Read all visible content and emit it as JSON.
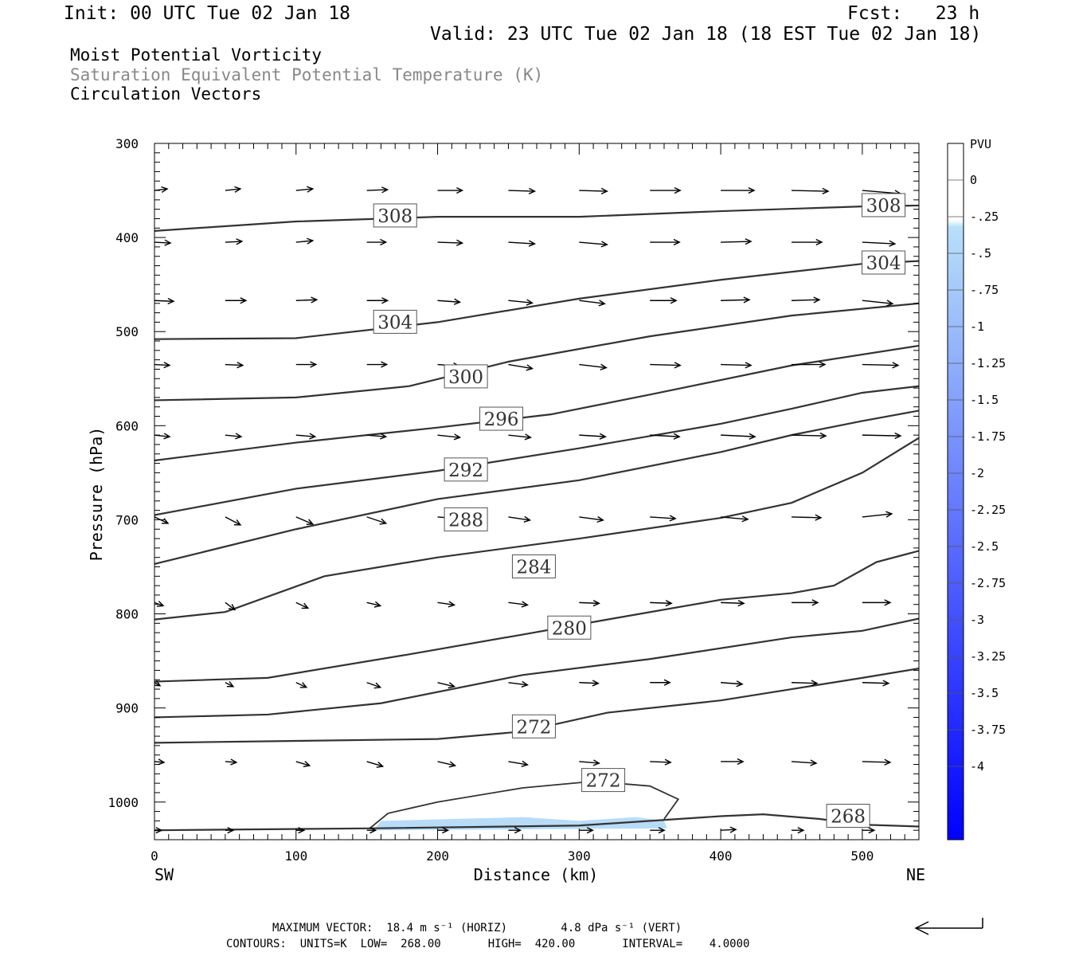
{
  "header": {
    "init": "Init: 00 UTC Tue 02 Jan 18",
    "fcst": "Fcst:   23 h",
    "valid": "Valid: 23 UTC Tue 02 Jan 18 (18 EST Tue 02 Jan 18)"
  },
  "legend": {
    "line1": "Moist Potential Vorticity",
    "line2": "Saturation Equivalent Potential Temperature (K)",
    "line3": "Circulation Vectors"
  },
  "footer": {
    "line1": "MAXIMUM VECTOR:  18.4 m s⁻¹ (HORIZ)        4.8 dPa s⁻¹ (VERT)",
    "line2": "CONTOURS:  UNITS=K  LOW=  268.00       HIGH=  420.00       INTERVAL=    4.0000"
  },
  "colors": {
    "contour": "#333333",
    "frame": "#000000",
    "shade_light": "#b8dcf8",
    "shade_mid": "#9cc8f4",
    "colorbar_top": "#ffffff",
    "colorbar_bottom": "#0000ff"
  },
  "chart_data": {
    "type": "cross-section",
    "xlabel": "Distance (km)",
    "ylabel": "Pressure (hPa)",
    "x_end_labels": {
      "left": "SW",
      "right": "NE"
    },
    "xlim": [
      0,
      540
    ],
    "ylim": [
      1040,
      300
    ],
    "xticks": [
      "0",
      "100",
      "200",
      "300",
      "400",
      "500"
    ],
    "yticks": [
      "300",
      "400",
      "500",
      "600",
      "700",
      "800",
      "900",
      "1000"
    ],
    "colorbar": {
      "title": "PVU",
      "labels": [
        "0",
        "-.25",
        "-.5",
        "-.75",
        "-1",
        "-1.25",
        "-1.5",
        "-1.75",
        "-2",
        "-2.25",
        "-2.5",
        "-2.75",
        "-3",
        "-3.25",
        "-3.5",
        "-3.75",
        "-4"
      ]
    },
    "contours": [
      {
        "level": "308",
        "points": [
          [
            0,
            393
          ],
          [
            100,
            383
          ],
          [
            200,
            378
          ],
          [
            300,
            378
          ],
          [
            400,
            372
          ],
          [
            500,
            367
          ],
          [
            540,
            366
          ]
        ]
      },
      {
        "level": "304",
        "points": [
          [
            0,
            508
          ],
          [
            100,
            507
          ],
          [
            200,
            490
          ],
          [
            300,
            465
          ],
          [
            400,
            445
          ],
          [
            500,
            428
          ],
          [
            540,
            425
          ]
        ]
      },
      {
        "level": "300",
        "points": [
          [
            0,
            573
          ],
          [
            100,
            570
          ],
          [
            180,
            558
          ],
          [
            250,
            532
          ],
          [
            350,
            505
          ],
          [
            450,
            483
          ],
          [
            540,
            470
          ]
        ]
      },
      {
        "level": "296",
        "points": [
          [
            0,
            637
          ],
          [
            100,
            618
          ],
          [
            200,
            602
          ],
          [
            280,
            588
          ],
          [
            350,
            567
          ],
          [
            450,
            536
          ],
          [
            540,
            515
          ]
        ]
      },
      {
        "level": "292",
        "points": [
          [
            0,
            695
          ],
          [
            100,
            667
          ],
          [
            200,
            648
          ],
          [
            300,
            624
          ],
          [
            400,
            598
          ],
          [
            450,
            582
          ],
          [
            500,
            565
          ],
          [
            540,
            558
          ]
        ]
      },
      {
        "level": "288",
        "points": [
          [
            0,
            747
          ],
          [
            100,
            710
          ],
          [
            200,
            678
          ],
          [
            300,
            658
          ],
          [
            400,
            628
          ],
          [
            450,
            610
          ],
          [
            500,
            595
          ],
          [
            540,
            584
          ]
        ]
      },
      {
        "level": "284",
        "points": [
          [
            0,
            806
          ],
          [
            50,
            798
          ],
          [
            120,
            760
          ],
          [
            200,
            740
          ],
          [
            300,
            720
          ],
          [
            400,
            698
          ],
          [
            450,
            682
          ],
          [
            500,
            650
          ],
          [
            540,
            613
          ]
        ]
      },
      {
        "level": "280",
        "points": [
          [
            0,
            872
          ],
          [
            80,
            868
          ],
          [
            180,
            843
          ],
          [
            260,
            822
          ],
          [
            320,
            806
          ],
          [
            400,
            785
          ],
          [
            450,
            778
          ],
          [
            480,
            770
          ],
          [
            510,
            745
          ],
          [
            540,
            733
          ]
        ]
      },
      {
        "level": "276",
        "points": [
          [
            0,
            910
          ],
          [
            80,
            907
          ],
          [
            160,
            895
          ],
          [
            260,
            865
          ],
          [
            350,
            848
          ],
          [
            450,
            825
          ],
          [
            500,
            818
          ],
          [
            540,
            805
          ]
        ]
      },
      {
        "level": "272",
        "points": [
          [
            0,
            937
          ],
          [
            100,
            935
          ],
          [
            200,
            933
          ],
          [
            260,
            925
          ],
          [
            320,
            905
          ],
          [
            400,
            892
          ],
          [
            450,
            880
          ],
          [
            500,
            868
          ],
          [
            540,
            858
          ]
        ]
      },
      {
        "level": "268",
        "points": [
          [
            0,
            1030
          ],
          [
            150,
            1028
          ],
          [
            300,
            1025
          ],
          [
            400,
            1015
          ],
          [
            430,
            1013
          ],
          [
            470,
            1018
          ],
          [
            500,
            1024
          ],
          [
            540,
            1026
          ]
        ]
      }
    ],
    "closed_contour": {
      "level": "272",
      "points": [
        [
          152,
          1028
        ],
        [
          165,
          1012
        ],
        [
          200,
          1000
        ],
        [
          260,
          985
        ],
        [
          310,
          978
        ],
        [
          350,
          983
        ],
        [
          370,
          997
        ],
        [
          360,
          1018
        ]
      ]
    },
    "shaded_region": {
      "range_pvu": "0 to -0.75",
      "points": [
        [
          155,
          1030
        ],
        [
          160,
          1020
        ],
        [
          260,
          1016
        ],
        [
          300,
          1020
        ],
        [
          340,
          1016
        ],
        [
          360,
          1020
        ],
        [
          362,
          1028
        ]
      ]
    },
    "contour_labels": [
      {
        "text": "308",
        "x": 170,
        "y": 377
      },
      {
        "text": "308",
        "x": 515,
        "y": 366
      },
      {
        "text": "304",
        "x": 515,
        "y": 427
      },
      {
        "text": "304",
        "x": 170,
        "y": 490
      },
      {
        "text": "300",
        "x": 220,
        "y": 548
      },
      {
        "text": "296",
        "x": 245,
        "y": 593
      },
      {
        "text": "292",
        "x": 220,
        "y": 647
      },
      {
        "text": "288",
        "x": 220,
        "y": 700
      },
      {
        "text": "284",
        "x": 268,
        "y": 750
      },
      {
        "text": "280",
        "x": 293,
        "y": 815
      },
      {
        "text": "272",
        "x": 268,
        "y": 920
      },
      {
        "text": "272",
        "x": 317,
        "y": 977
      },
      {
        "text": "268",
        "x": 490,
        "y": 1015
      }
    ],
    "vectors": [
      {
        "p": 350,
        "x": [
          0,
          50,
          100,
          150,
          200,
          250,
          300,
          350,
          400,
          450,
          500
        ],
        "dx": [
          16,
          19,
          21,
          26,
          31,
          33,
          35,
          38,
          42,
          46,
          48
        ],
        "dy": [
          -2,
          -2,
          -2,
          -1,
          0,
          1,
          1,
          0,
          0,
          1,
          4
        ]
      },
      {
        "p": 405,
        "x": [
          0,
          50,
          100,
          150,
          200,
          250,
          300,
          350,
          400,
          450,
          500
        ],
        "dx": [
          20,
          21,
          21,
          24,
          31,
          33,
          35,
          37,
          38,
          38,
          41
        ],
        "dy": [
          1,
          -1,
          -2,
          0,
          1,
          2,
          3,
          0,
          -1,
          0,
          2
        ]
      },
      {
        "p": 467,
        "x": [
          0,
          50,
          100,
          150,
          200,
          250,
          300,
          350,
          400,
          450,
          500
        ],
        "dx": [
          24,
          26,
          26,
          26,
          28,
          30,
          32,
          33,
          36,
          35,
          38
        ],
        "dy": [
          1,
          0,
          -1,
          0,
          2,
          3,
          4,
          0,
          -1,
          -1,
          4
        ]
      },
      {
        "p": 535,
        "x": [
          0,
          50,
          100,
          150,
          200,
          250,
          300,
          350,
          400,
          450,
          500
        ],
        "dx": [
          19,
          22,
          25,
          25,
          27,
          30,
          34,
          38,
          38,
          42,
          45
        ],
        "dy": [
          1,
          1,
          0,
          0,
          2,
          5,
          4,
          1,
          1,
          0,
          1
        ]
      },
      {
        "p": 610,
        "x": [
          0,
          50,
          100,
          150,
          200,
          250,
          300,
          350,
          400,
          450,
          500
        ],
        "dx": [
          19,
          20,
          24,
          24,
          28,
          28,
          33,
          37,
          43,
          43,
          48
        ],
        "dy": [
          2,
          2,
          2,
          2,
          3,
          3,
          2,
          2,
          2,
          1,
          1
        ]
      },
      {
        "p": 697,
        "x": [
          0,
          50,
          100,
          150,
          200,
          250,
          300,
          350,
          400,
          450,
          500
        ],
        "dx": [
          17,
          19,
          21,
          24,
          28,
          27,
          30,
          32,
          34,
          37,
          37
        ],
        "dy": [
          8,
          10,
          9,
          8,
          2,
          4,
          4,
          2,
          3,
          1,
          -4
        ]
      },
      {
        "p": 788,
        "x": [
          0,
          50,
          100,
          150,
          200,
          250,
          300,
          350,
          400,
          450,
          500
        ],
        "dx": [
          11,
          12,
          15,
          17,
          21,
          24,
          25,
          27,
          29,
          33,
          35
        ],
        "dy": [
          4,
          9,
          7,
          4,
          3,
          3,
          1,
          1,
          1,
          0,
          0
        ]
      },
      {
        "p": 873,
        "x": [
          0,
          50,
          100,
          150,
          200,
          250,
          300,
          350,
          400,
          450,
          500
        ],
        "dx": [
          7,
          10,
          13,
          17,
          21,
          24,
          24,
          25,
          27,
          32,
          33
        ],
        "dy": [
          4,
          5,
          6,
          6,
          5,
          3,
          1,
          0,
          2,
          1,
          1
        ]
      },
      {
        "p": 957,
        "x": [
          0,
          50,
          100,
          150,
          200,
          250,
          300,
          350,
          400,
          450,
          500
        ],
        "dx": [
          12,
          14,
          17,
          20,
          22,
          24,
          25,
          26,
          28,
          31,
          35
        ],
        "dy": [
          1,
          1,
          5,
          6,
          5,
          4,
          2,
          1,
          0,
          2,
          1
        ]
      },
      {
        "p": 1030,
        "x": [
          0,
          50,
          100,
          150,
          200,
          250,
          300,
          350,
          400,
          450,
          500
        ],
        "dx": [
          9,
          10,
          10,
          11,
          13,
          15,
          17,
          18,
          19,
          15,
          15
        ],
        "dy": [
          0,
          0,
          0,
          0,
          0,
          0,
          0,
          0,
          -1,
          0,
          0
        ]
      }
    ]
  }
}
